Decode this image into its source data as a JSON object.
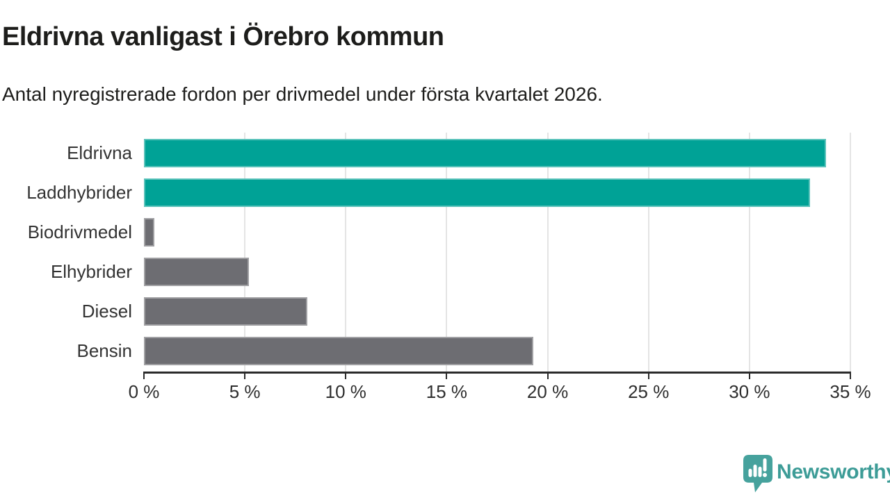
{
  "header": {
    "title": "Eldrivna vanligast i Örebro kommun",
    "subtitle": "Antal nyregistrerade fordon per drivmedel under första kvartalet 2026."
  },
  "chart_data": {
    "type": "bar",
    "orientation": "horizontal",
    "title": "Eldrivna vanligast i Örebro kommun",
    "subtitle": "Antal nyregistrerade fordon per drivmedel under första kvartalet 2026.",
    "categories": [
      "Eldrivna",
      "Laddhybrider",
      "Biodrivmedel",
      "Elhybrider",
      "Diesel",
      "Bensin"
    ],
    "values": [
      33.8,
      33.0,
      0.5,
      5.2,
      8.1,
      19.3
    ],
    "unit": "%",
    "highlighted": [
      true,
      true,
      false,
      false,
      false,
      false
    ],
    "xlim": [
      0,
      35
    ],
    "x_ticks": [
      0,
      5,
      10,
      15,
      20,
      25,
      30,
      35
    ],
    "x_tick_labels": [
      "0 %",
      "5 %",
      "10 %",
      "15 %",
      "20 %",
      "25 %",
      "30 %",
      "35 %"
    ],
    "grid": "vertical-gridlines-on",
    "legend": "none",
    "colors": {
      "highlight_bar": "#00a296",
      "default_bar": "#6d6d72",
      "gridline": "#e4e4e4",
      "axis": "#2b2b2b",
      "text": "#333333"
    }
  },
  "branding": {
    "logo_text": "Newsworthy",
    "logo_text_color": "#3d9c97",
    "logo_icon_color": "#46a29d",
    "logo_icon": "newsworthy-bar-chart-speech-bubble-icon"
  }
}
